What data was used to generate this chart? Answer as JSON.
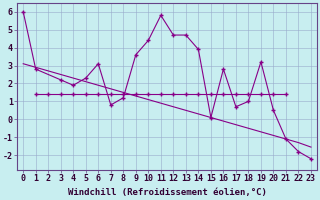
{
  "xlabel": "Windchill (Refroidissement éolien,°C)",
  "x_values": [
    0,
    1,
    2,
    3,
    4,
    5,
    6,
    7,
    8,
    9,
    10,
    11,
    12,
    13,
    14,
    15,
    16,
    17,
    18,
    19,
    20,
    21,
    22,
    23
  ],
  "series_main": [
    6.0,
    2.8,
    null,
    2.2,
    1.9,
    2.3,
    3.1,
    0.8,
    1.2,
    3.6,
    4.4,
    5.8,
    4.7,
    4.7,
    3.9,
    0.1,
    2.8,
    0.7,
    1.0,
    3.2,
    0.5,
    -1.1,
    -1.8,
    -2.2
  ],
  "series_flat": [
    null,
    1.4,
    1.4,
    1.4,
    1.4,
    1.4,
    1.4,
    1.4,
    1.4,
    1.4,
    1.4,
    1.4,
    1.4,
    1.4,
    1.4,
    1.4,
    1.4,
    1.4,
    1.4,
    1.4,
    1.4,
    1.4,
    null,
    null
  ],
  "series_trend": [
    3.1,
    2.9,
    2.7,
    2.5,
    2.3,
    2.1,
    1.9,
    1.7,
    1.5,
    1.3,
    1.1,
    0.9,
    0.7,
    0.5,
    0.3,
    0.1,
    -0.1,
    -0.3,
    -0.5,
    -0.7,
    -0.9,
    -1.1,
    -1.3,
    -1.55
  ],
  "line_color": "#880088",
  "bg_color": "#c8eef0",
  "grid_color": "#99aacc",
  "ylim": [
    -2.8,
    6.5
  ],
  "yticks": [
    -2,
    -1,
    0,
    1,
    2,
    3,
    4,
    5,
    6
  ],
  "xticks": [
    0,
    1,
    2,
    3,
    4,
    5,
    6,
    7,
    8,
    9,
    10,
    11,
    12,
    13,
    14,
    15,
    16,
    17,
    18,
    19,
    20,
    21,
    22,
    23
  ],
  "xlabel_fontsize": 6.5,
  "tick_fontsize": 6.0
}
